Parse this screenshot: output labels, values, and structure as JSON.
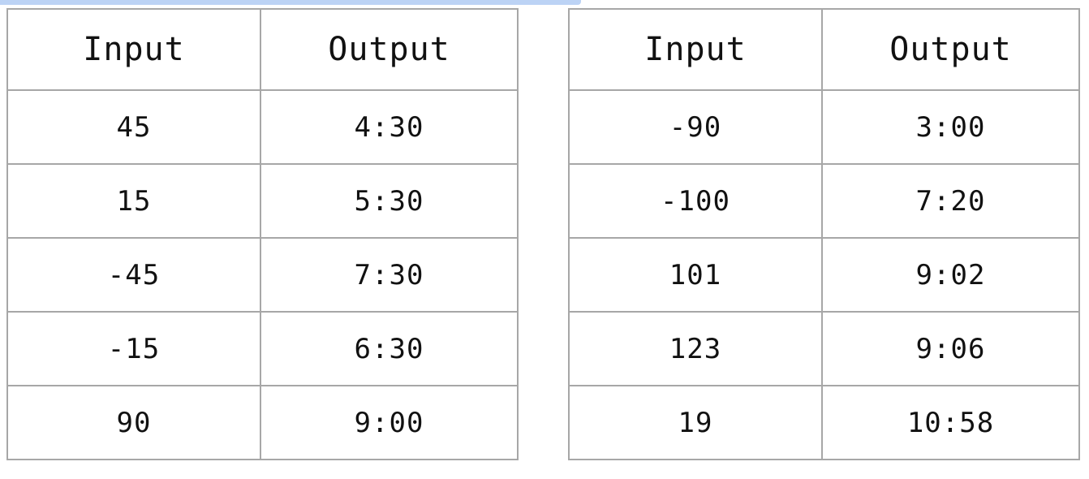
{
  "tables": [
    {
      "headers": {
        "input": "Input",
        "output": "Output"
      },
      "rows": [
        {
          "input": "45",
          "output": "4:30"
        },
        {
          "input": "15",
          "output": "5:30"
        },
        {
          "input": "-45",
          "output": "7:30"
        },
        {
          "input": "-15",
          "output": "6:30"
        },
        {
          "input": "90",
          "output": "9:00"
        }
      ]
    },
    {
      "headers": {
        "input": "Input",
        "output": "Output"
      },
      "rows": [
        {
          "input": "-90",
          "output": "3:00"
        },
        {
          "input": "-100",
          "output": "7:20"
        },
        {
          "input": "101",
          "output": "9:02"
        },
        {
          "input": "123",
          "output": "9:06"
        },
        {
          "input": "19",
          "output": "10:58"
        }
      ]
    }
  ],
  "colors": {
    "border": "#a7a7a7",
    "selection_strip": "#bcd3f5",
    "text": "#111111"
  }
}
